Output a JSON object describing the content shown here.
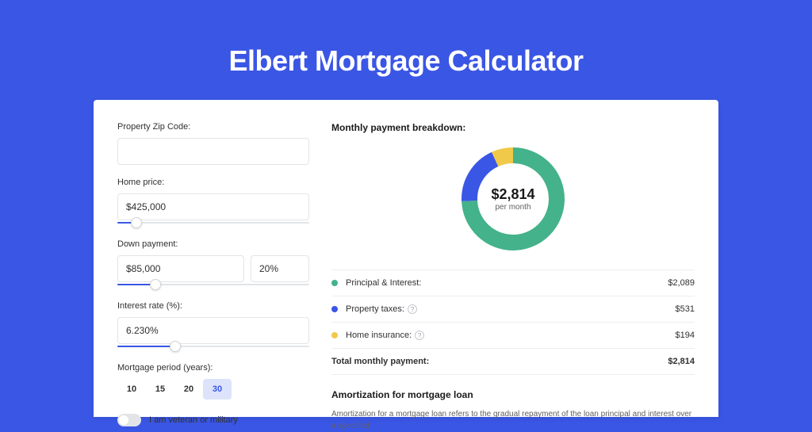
{
  "page": {
    "title": "Elbert Mortgage Calculator"
  },
  "form": {
    "zip": {
      "label": "Property Zip Code:",
      "value": ""
    },
    "price": {
      "label": "Home price:",
      "value": "$425,000",
      "slider_pct": 10
    },
    "down": {
      "label": "Down payment:",
      "amount": "$85,000",
      "pct": "20%",
      "slider_pct": 20
    },
    "rate": {
      "label": "Interest rate (%):",
      "value": "6.230%",
      "slider_pct": 30
    },
    "period": {
      "label": "Mortgage period (years):",
      "options": [
        "10",
        "15",
        "20",
        "30"
      ],
      "selected": "30"
    },
    "veteran": {
      "label": "I am veteran or military",
      "checked": false
    }
  },
  "breakdown": {
    "title": "Monthly payment breakdown:",
    "donut": {
      "type": "donut",
      "center_value": "$2,814",
      "center_sub": "per month",
      "size": 130,
      "stroke_width": 20,
      "background_color": "#ffffff",
      "segments": [
        {
          "key": "principal",
          "color": "#44b28a",
          "pct": 74.2
        },
        {
          "key": "taxes",
          "color": "#3a56e4",
          "pct": 18.9
        },
        {
          "key": "insurance",
          "color": "#f0c94a",
          "pct": 6.9
        }
      ]
    },
    "rows": [
      {
        "dot_color": "#44b28a",
        "label": "Principal & Interest:",
        "value": "$2,089",
        "help": false
      },
      {
        "dot_color": "#3a56e4",
        "label": "Property taxes:",
        "value": "$531",
        "help": true
      },
      {
        "dot_color": "#f0c94a",
        "label": "Home insurance:",
        "value": "$194",
        "help": true
      }
    ],
    "total": {
      "label": "Total monthly payment:",
      "value": "$2,814"
    }
  },
  "amort": {
    "title": "Amortization for mortgage loan",
    "text": "Amortization for a mortgage loan refers to the gradual repayment of the loan principal and interest over a specified"
  },
  "colors": {
    "brand": "#3a56e4",
    "text": "#303030",
    "border": "#e2e4e8"
  }
}
